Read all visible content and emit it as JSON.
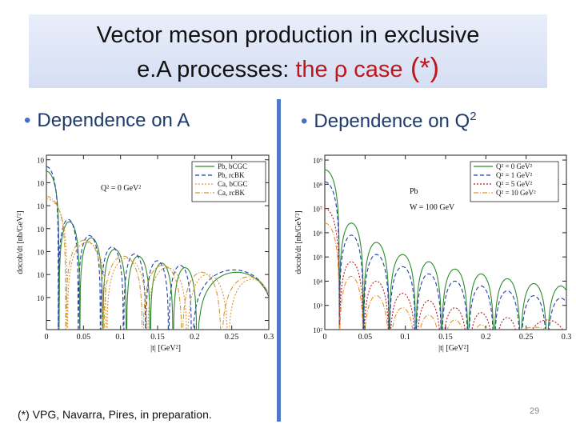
{
  "title": {
    "line1": "Vector meson production in exclusive",
    "line2_prefix": "e.A processes: ",
    "line2_red": "the ρ case",
    "line2_suffix": " (*)"
  },
  "bullets": {
    "left": "Dependence on A",
    "right_prefix": "Dependence on Q",
    "right_sup": "2"
  },
  "footer": "(*) VPG, Navarra, Pires,  in preparation.",
  "page_number": "29",
  "chart_data": [
    {
      "type": "line",
      "xlabel": "|t| [GeV²]",
      "ylabel": "dσcoh/dt [nb/GeV²]",
      "annotation": "Q² = 0 GeV²",
      "xticks": [
        "0",
        "0.05",
        "0.1",
        "0.15",
        "0.2",
        "0.25",
        "0.3"
      ],
      "xlim": [
        0,
        0.3
      ],
      "yscale": "log",
      "legend": [
        "Pb, bCGC",
        "Pb, rcBK",
        "Ca, bCGC",
        "Ca, rcBK"
      ],
      "colors": [
        "#2e8b2e",
        "#1f3fae",
        "#e8932d",
        "#c99a3a"
      ],
      "series": [
        {
          "name": "Pb, bCGC",
          "minima": [
            0.017,
            0.045,
            0.076,
            0.108,
            0.14,
            0.171,
            0.203
          ],
          "peak_level": [
            8.5,
            6.3,
            5.6,
            5.1,
            4.8,
            4.5,
            4.3,
            4.1
          ]
        },
        {
          "name": "Pb, rcBK",
          "minima": [
            0.016,
            0.043,
            0.073,
            0.104,
            0.134,
            0.165,
            0.196
          ],
          "peak_level": [
            8.7,
            6.4,
            5.7,
            5.2,
            4.9,
            4.6,
            4.4,
            4.2
          ]
        },
        {
          "name": "Ca, bCGC",
          "minima": [
            0.028,
            0.081,
            0.136,
            0.19,
            0.245
          ],
          "peak_level": [
            7.3,
            5.4,
            4.7,
            4.3,
            4.0,
            3.8
          ]
        },
        {
          "name": "Ca, rcBK",
          "minima": [
            0.026,
            0.077,
            0.13,
            0.183,
            0.236
          ],
          "peak_level": [
            7.4,
            5.5,
            4.8,
            4.4,
            4.1,
            3.9
          ]
        }
      ]
    },
    {
      "type": "line",
      "xlabel": "|t| [GeV²]",
      "ylabel": "dσcoh/dt [nb/GeV²]",
      "annotation": [
        "Pb",
        "W = 100 GeV"
      ],
      "xticks": [
        "0",
        "0.05",
        "0.1",
        "0.15",
        "0.2",
        "0.25",
        "0.3"
      ],
      "xlim": [
        0,
        0.3
      ],
      "yticks": [
        "10²",
        "10³",
        "10⁴",
        "10⁵",
        "10⁶",
        "10⁷",
        "10⁸",
        "10⁹"
      ],
      "ylim_exp": [
        2,
        9
      ],
      "yscale": "log",
      "legend": [
        "Q² = 0 GeV²",
        "Q² = 1 GeV²",
        "Q² = 5 GeV²",
        "Q² = 10 GeV²"
      ],
      "colors": [
        "#2e8b2e",
        "#1f3fae",
        "#c0171b",
        "#e8932d"
      ],
      "series": [
        {
          "name": "Q² = 0 GeV²",
          "minima": [
            0.018,
            0.048,
            0.08,
            0.113,
            0.145,
            0.178,
            0.21,
            0.243,
            0.276
          ],
          "peak_level": [
            8.6,
            6.4,
            5.6,
            5.1,
            4.8,
            4.5,
            4.3,
            4.1,
            3.9,
            3.8
          ]
        },
        {
          "name": "Q² = 1 GeV²",
          "minima": [
            0.018,
            0.048,
            0.08,
            0.113,
            0.145,
            0.178,
            0.21,
            0.243,
            0.276
          ],
          "peak_level": [
            8.1,
            5.9,
            5.1,
            4.6,
            4.3,
            4.0,
            3.8,
            3.6,
            3.4,
            3.3
          ]
        },
        {
          "name": "Q² = 5 GeV²",
          "minima": [
            0.018,
            0.048,
            0.08,
            0.113,
            0.145,
            0.178,
            0.21,
            0.243
          ],
          "peak_level": [
            7.0,
            4.8,
            4.0,
            3.5,
            3.2,
            2.9,
            2.7,
            2.5,
            2.4
          ]
        },
        {
          "name": "Q² = 10 GeV²",
          "minima": [
            0.018,
            0.048,
            0.08,
            0.113,
            0.145,
            0.178,
            0.21
          ],
          "peak_level": [
            6.4,
            4.2,
            3.4,
            2.9,
            2.6,
            2.4,
            2.2,
            2.1
          ]
        }
      ]
    }
  ]
}
